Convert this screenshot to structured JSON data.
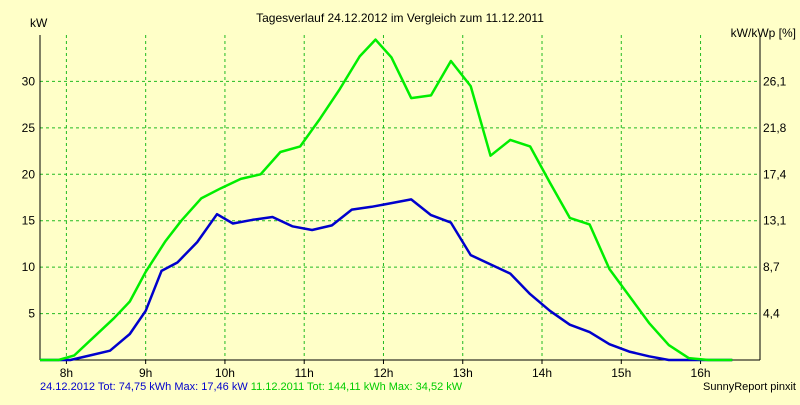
{
  "chart_data": {
    "type": "line",
    "title": "Tagesverlauf 24.12.2012 im Vergleich zum 11.12.2011",
    "ylabel_left": "kW",
    "ylabel_right": "kW/kWp [%]",
    "x_ticks": [
      "8h",
      "9h",
      "10h",
      "11h",
      "12h",
      "13h",
      "14h",
      "15h",
      "16h"
    ],
    "x_range": [
      7.667,
      16.75
    ],
    "ylim": [
      0,
      35
    ],
    "y_ticks_left": [
      5,
      10,
      15,
      20,
      25,
      30
    ],
    "y_ticks_right": [
      "4,4",
      "8,7",
      "13,1",
      "17,4",
      "21,8",
      "26,1"
    ],
    "grid": true,
    "series": [
      {
        "name": "24.12.2012",
        "color": "#0000cc",
        "x": [
          7.667,
          7.9,
          8.05,
          8.3,
          8.55,
          8.8,
          9.0,
          9.2,
          9.4,
          9.65,
          9.9,
          10.1,
          10.35,
          10.6,
          10.85,
          11.1,
          11.35,
          11.6,
          11.85,
          12.1,
          12.35,
          12.6,
          12.85,
          13.1,
          13.35,
          13.6,
          13.85,
          14.1,
          14.35,
          14.6,
          14.85,
          15.1,
          15.35,
          15.6,
          15.85,
          16.1,
          16.4
        ],
        "values": [
          0,
          0,
          0,
          0.5,
          1.0,
          2.8,
          5.3,
          9.6,
          10.5,
          12.7,
          15.7,
          14.7,
          15.1,
          15.4,
          14.4,
          14.0,
          14.5,
          16.2,
          16.5,
          16.9,
          17.3,
          15.6,
          14.8,
          11.3,
          10.3,
          9.3,
          7.1,
          5.3,
          3.8,
          3.0,
          1.7,
          0.9,
          0.4,
          0,
          0,
          0,
          0
        ],
        "legend_text": "24.12.2012 Tot: 74,75 kWh Max: 17,46 kW"
      },
      {
        "name": "11.12.2011",
        "color": "#00ee00",
        "x": [
          7.667,
          7.9,
          8.1,
          8.35,
          8.6,
          8.8,
          9.0,
          9.25,
          9.45,
          9.7,
          9.95,
          10.2,
          10.45,
          10.7,
          10.95,
          11.2,
          11.45,
          11.7,
          11.9,
          12.1,
          12.35,
          12.6,
          12.85,
          13.1,
          13.35,
          13.6,
          13.85,
          14.1,
          14.35,
          14.6,
          14.85,
          15.1,
          15.35,
          15.6,
          15.85,
          16.1,
          16.4
        ],
        "values": [
          0,
          0,
          0.5,
          2.5,
          4.5,
          6.3,
          9.5,
          12.8,
          15.0,
          17.4,
          18.5,
          19.5,
          20.0,
          22.4,
          23.0,
          26.0,
          29.2,
          32.7,
          34.5,
          32.6,
          28.2,
          28.5,
          32.2,
          29.5,
          22.0,
          23.7,
          23.0,
          19.1,
          15.3,
          14.6,
          9.8,
          6.9,
          4.0,
          1.6,
          0.2,
          0,
          0
        ],
        "legend_text": "11.12.2011 Tot: 144,11 kWh Max: 34,52 kW"
      }
    ]
  },
  "footer": {
    "credit": "SunnyReport pinxit"
  }
}
